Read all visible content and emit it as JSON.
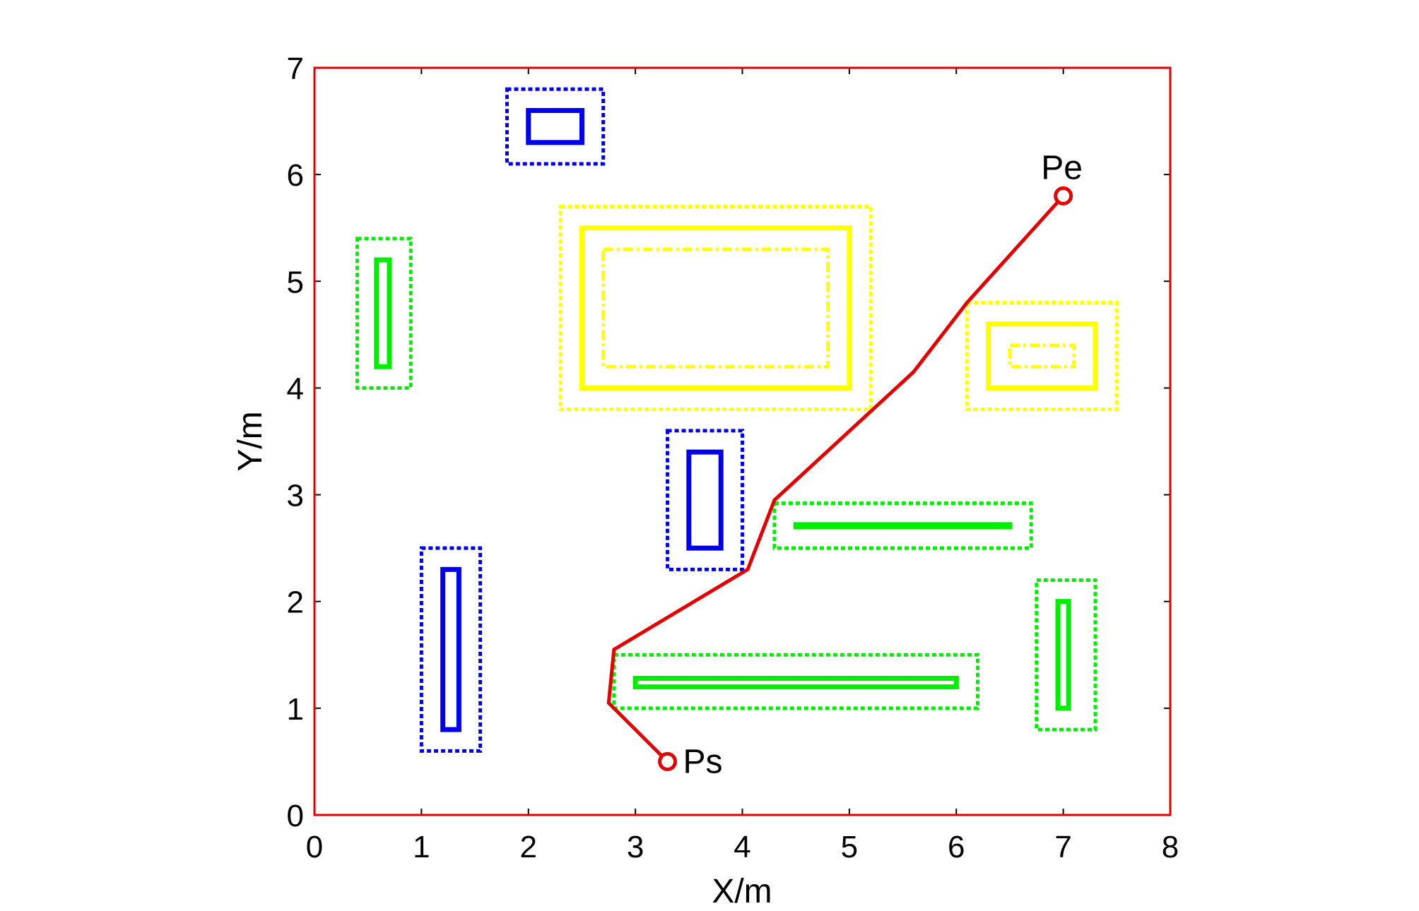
{
  "chart_data": {
    "type": "line",
    "title": "",
    "xlabel": "X/m",
    "ylabel": "Y/m",
    "xlim": [
      0,
      8
    ],
    "ylim": [
      0,
      7
    ],
    "xticks": [
      0,
      1,
      2,
      3,
      4,
      5,
      6,
      7,
      8
    ],
    "yticks": [
      0,
      1,
      2,
      3,
      4,
      5,
      6,
      7
    ],
    "grid": false,
    "legend": "none",
    "frame_color": "#e60000",
    "path": {
      "color": "#e60000",
      "points": [
        [
          3.3,
          0.5
        ],
        [
          2.75,
          1.05
        ],
        [
          2.8,
          1.55
        ],
        [
          4.05,
          2.3
        ],
        [
          4.3,
          2.95
        ],
        [
          5.6,
          4.15
        ],
        [
          6.1,
          4.8
        ],
        [
          7.0,
          5.8
        ]
      ]
    },
    "endpoints": [
      {
        "label": "Ps",
        "x": 3.3,
        "y": 0.5
      },
      {
        "label": "Pe",
        "x": 7.0,
        "y": 5.8
      }
    ],
    "obstacles": [
      {
        "color": "#0000ee",
        "rects": [
          {
            "style": "solid",
            "x1": 2.0,
            "y1": 6.3,
            "x2": 2.5,
            "y2": 6.6
          },
          {
            "style": "dotted",
            "x1": 1.8,
            "y1": 6.1,
            "x2": 2.7,
            "y2": 6.8
          }
        ]
      },
      {
        "color": "#0000ee",
        "rects": [
          {
            "style": "solid",
            "x1": 3.5,
            "y1": 2.5,
            "x2": 3.8,
            "y2": 3.4
          },
          {
            "style": "dotted",
            "x1": 3.3,
            "y1": 2.3,
            "x2": 4.0,
            "y2": 3.6
          }
        ]
      },
      {
        "color": "#0000ee",
        "rects": [
          {
            "style": "solid",
            "x1": 1.2,
            "y1": 0.8,
            "x2": 1.35,
            "y2": 2.3
          },
          {
            "style": "dotted",
            "x1": 1.0,
            "y1": 0.6,
            "x2": 1.55,
            "y2": 2.5
          }
        ]
      },
      {
        "color": "#00ee00",
        "rects": [
          {
            "style": "solid",
            "x1": 0.58,
            "y1": 4.2,
            "x2": 0.7,
            "y2": 5.2
          },
          {
            "style": "dotted",
            "x1": 0.4,
            "y1": 4.0,
            "x2": 0.9,
            "y2": 5.4
          }
        ]
      },
      {
        "color": "#00ee00",
        "rects": [
          {
            "style": "solid",
            "x1": 4.5,
            "y1": 2.7,
            "x2": 6.5,
            "y2": 2.72
          },
          {
            "style": "dotted",
            "x1": 4.3,
            "y1": 2.5,
            "x2": 6.7,
            "y2": 2.92
          }
        ]
      },
      {
        "color": "#00ee00",
        "rects": [
          {
            "style": "solid",
            "x1": 3.0,
            "y1": 1.2,
            "x2": 6.0,
            "y2": 1.28
          },
          {
            "style": "dotted",
            "x1": 2.8,
            "y1": 1.0,
            "x2": 6.2,
            "y2": 1.5
          }
        ]
      },
      {
        "color": "#00ee00",
        "rects": [
          {
            "style": "solid",
            "x1": 6.95,
            "y1": 1.0,
            "x2": 7.05,
            "y2": 2.0
          },
          {
            "style": "dotted",
            "x1": 6.75,
            "y1": 0.8,
            "x2": 7.3,
            "y2": 2.2
          }
        ]
      },
      {
        "color": "#ffff00",
        "rects": [
          {
            "style": "solid",
            "x1": 2.5,
            "y1": 4.0,
            "x2": 5.0,
            "y2": 5.5
          },
          {
            "style": "dotted",
            "x1": 2.3,
            "y1": 3.8,
            "x2": 5.2,
            "y2": 5.7
          },
          {
            "style": "dashdot",
            "x1": 2.7,
            "y1": 4.2,
            "x2": 4.8,
            "y2": 5.3
          }
        ]
      },
      {
        "color": "#ffff00",
        "rects": [
          {
            "style": "solid",
            "x1": 6.3,
            "y1": 4.0,
            "x2": 7.3,
            "y2": 4.6
          },
          {
            "style": "dotted",
            "x1": 6.1,
            "y1": 3.8,
            "x2": 7.5,
            "y2": 4.8
          },
          {
            "style": "dashdot",
            "x1": 6.5,
            "y1": 4.2,
            "x2": 7.1,
            "y2": 4.4
          }
        ]
      }
    ]
  }
}
